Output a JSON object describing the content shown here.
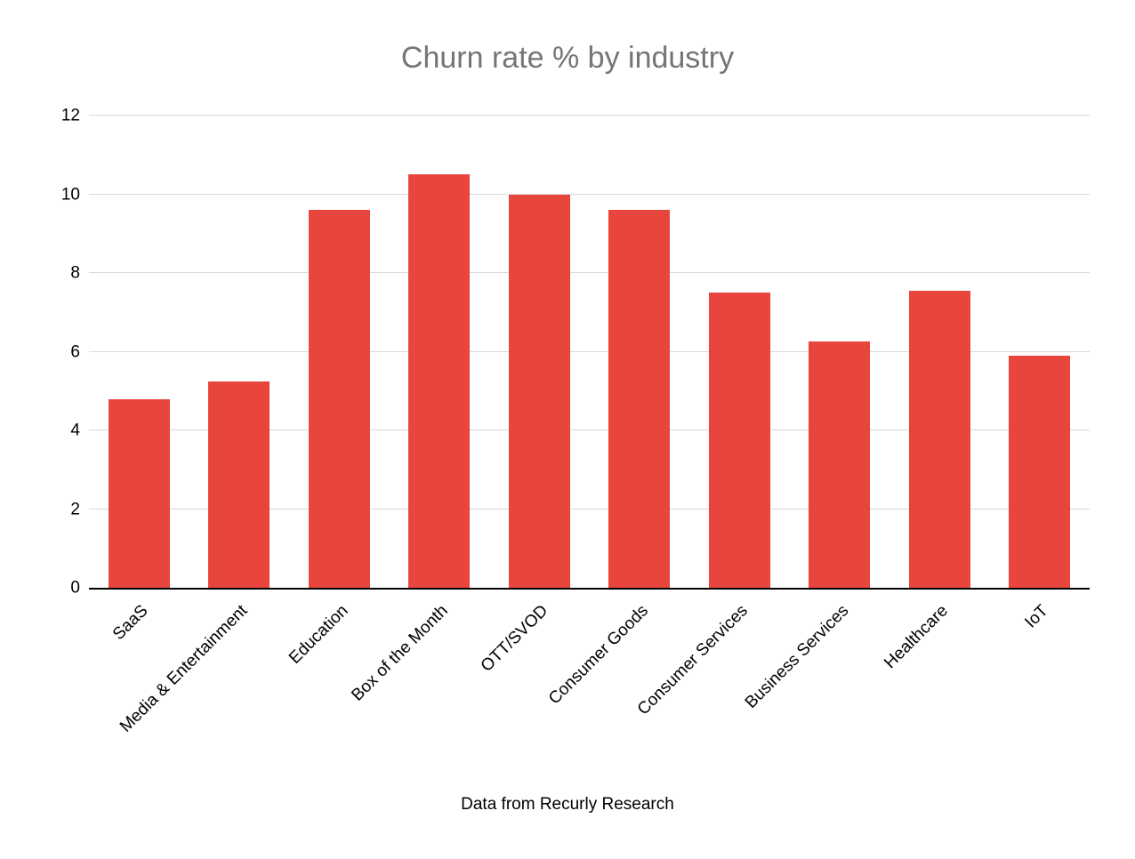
{
  "chart_data": {
    "type": "bar",
    "title": "Churn rate % by industry",
    "categories": [
      "SaaS",
      "Media & Entertainment",
      "Education",
      "Box of the Month",
      "OTT/SVOD",
      "Consumer Goods",
      "Consumer Services",
      "Business Services",
      "Healthcare",
      "IoT"
    ],
    "values": [
      4.8,
      5.25,
      9.6,
      10.5,
      10.0,
      9.6,
      7.5,
      6.25,
      7.55,
      5.9
    ],
    "xlabel": "",
    "ylabel": "",
    "ylim": [
      0,
      12
    ],
    "yticks": [
      0,
      2,
      4,
      6,
      8,
      10,
      12
    ],
    "grid": true,
    "legend_position": "none",
    "bar_color": "#e8453c",
    "title_color": "#757575",
    "grid_color": "#d9d9d9",
    "axis_color": "#000000",
    "label_color": "#000000",
    "footnote": "Data from Recurly Research"
  }
}
